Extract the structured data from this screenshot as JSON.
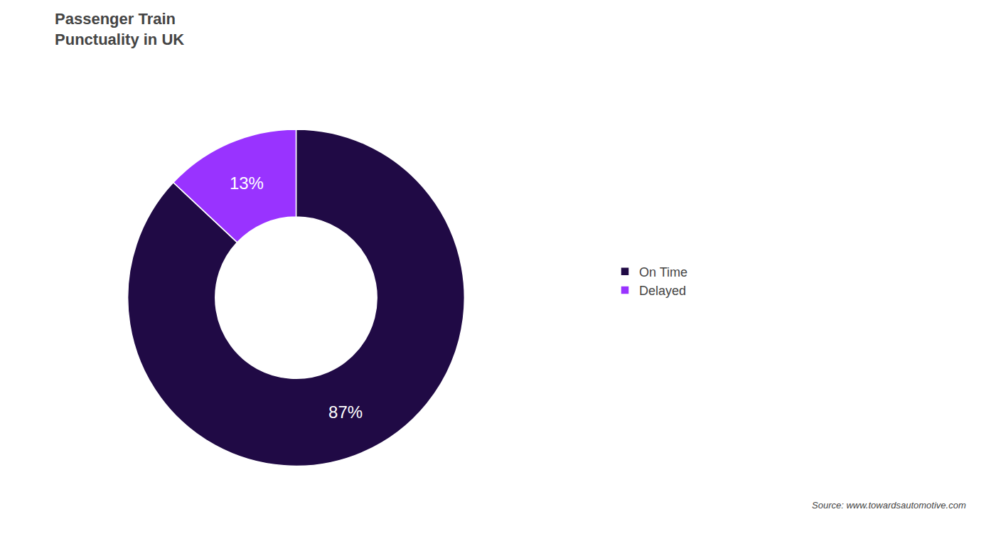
{
  "chart_data": {
    "type": "pie",
    "title": "Passenger Train\nPunctuality in UK",
    "categories": [
      "On Time",
      "Delayed"
    ],
    "values": [
      87,
      13
    ],
    "value_labels": [
      "87%",
      "13%"
    ],
    "colors": [
      "#200a45",
      "#9933ff"
    ],
    "data_labels": true,
    "legend": "right",
    "annotations": [
      "Source: www.towardsautomotive.com"
    ]
  }
}
